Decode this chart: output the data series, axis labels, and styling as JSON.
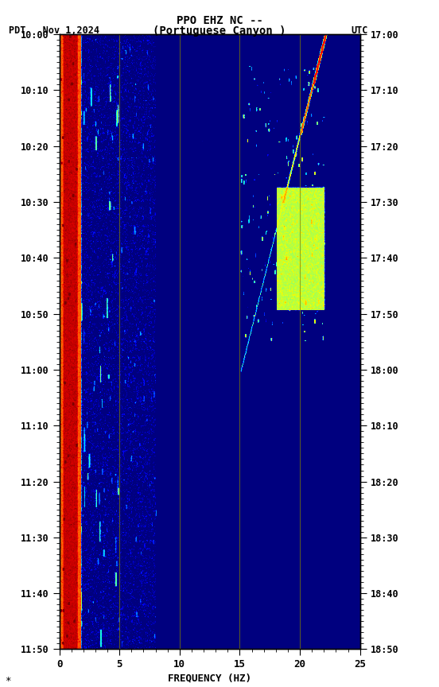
{
  "title_line1": "PPO EHZ NC --",
  "title_line2": "(Portuguese Canyon )",
  "left_label": "PDT   Nov 1,2024",
  "right_label": "UTC",
  "xlabel": "FREQUENCY (HZ)",
  "freq_min": 0,
  "freq_max": 25,
  "time_ticks_left": [
    "10:00",
    "10:10",
    "10:20",
    "10:30",
    "10:40",
    "10:50",
    "11:00",
    "11:10",
    "11:20",
    "11:30",
    "11:40",
    "11:50"
  ],
  "time_ticks_right": [
    "17:00",
    "17:10",
    "17:20",
    "17:30",
    "17:40",
    "17:50",
    "18:00",
    "18:10",
    "18:20",
    "18:30",
    "18:40",
    "18:50"
  ],
  "vlines_freq": [
    5,
    10,
    15,
    20
  ],
  "n_time": 700,
  "n_freq": 500,
  "colormap": "jet",
  "fig_width": 5.52,
  "fig_height": 8.64,
  "dpi": 100
}
